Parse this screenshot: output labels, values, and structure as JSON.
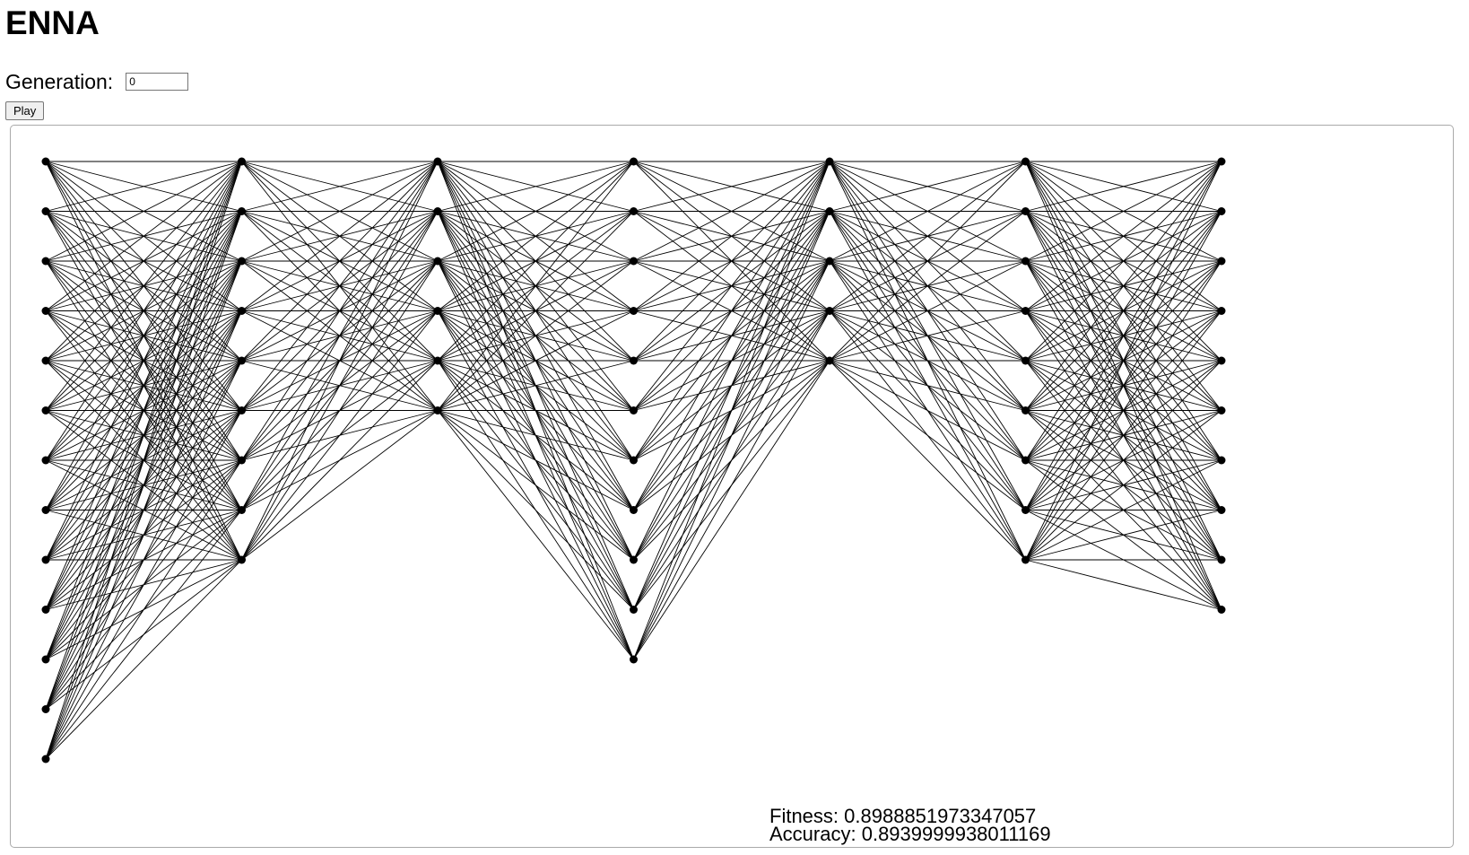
{
  "page": {
    "title": "ENNA"
  },
  "controls": {
    "generation_label": "Generation:",
    "generation_value": "0",
    "play_label": "Play"
  },
  "network": {
    "layers": [
      13,
      9,
      6,
      11,
      5,
      9,
      10
    ],
    "node_color": "#000000",
    "edge_color": "#000000"
  },
  "stats": {
    "fitness_label": "Fitness:",
    "fitness_value": "0.8988851973347057",
    "accuracy_label": "Accuracy:",
    "accuracy_value": "0.8939999938011169"
  }
}
